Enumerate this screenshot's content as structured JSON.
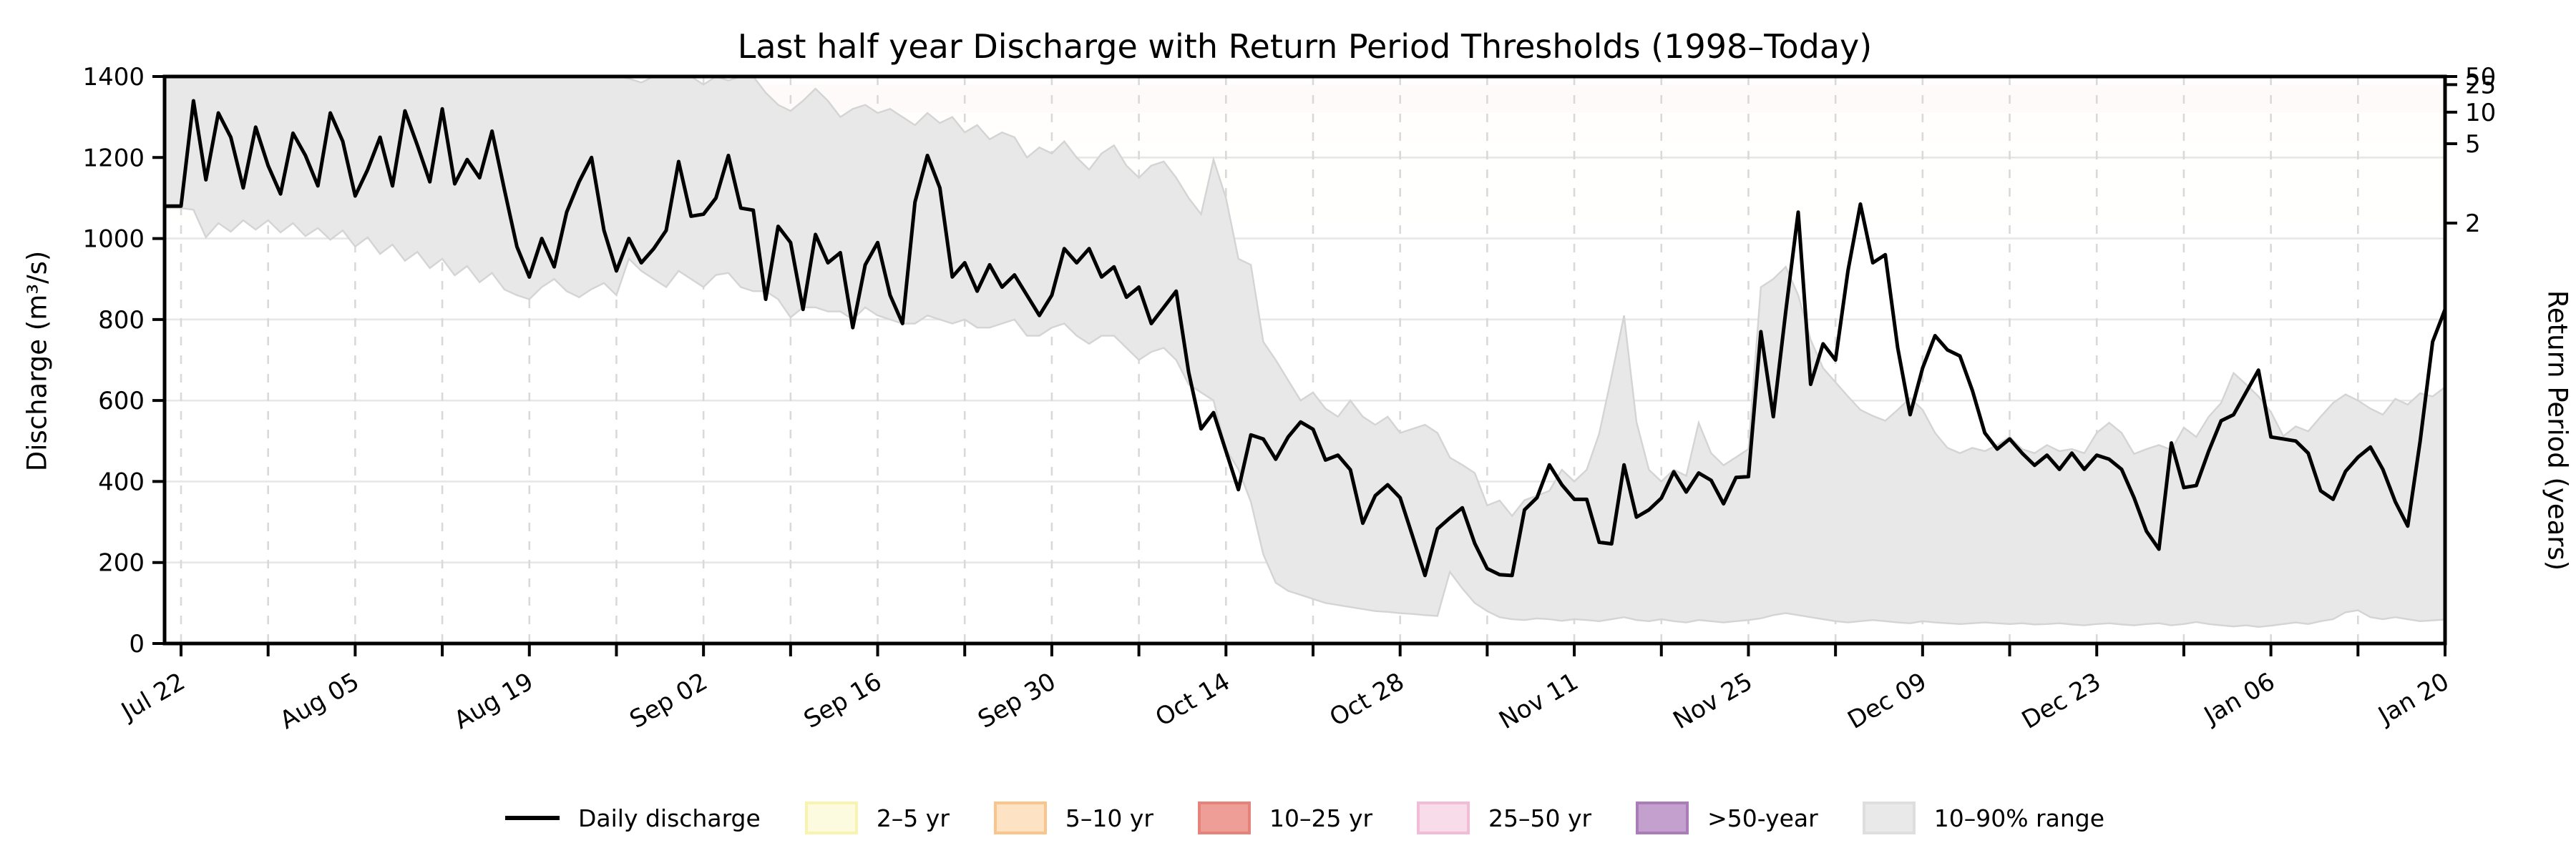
{
  "title": "Last half year Discharge with Return Period Thresholds (1998–Today)",
  "axes": {
    "y_left": {
      "label": "Discharge (m³/s)",
      "ticks": [
        0,
        200,
        400,
        600,
        800,
        1000,
        1200,
        1400
      ],
      "lim": [
        0,
        1400
      ]
    },
    "y_right": {
      "label": "Return Period (years)",
      "ticks": [
        {
          "label": "2",
          "discharge": 1038
        },
        {
          "label": "5",
          "discharge": 1234
        },
        {
          "label": "10",
          "discharge": 1312
        },
        {
          "label": "25",
          "discharge": 1380
        },
        {
          "label": "50",
          "discharge": 1402
        }
      ]
    },
    "x": {
      "tick_labels": [
        "Jul 22",
        "Aug 05",
        "Aug 19",
        "Sep 02",
        "Sep 16",
        "Sep 30",
        "Oct 14",
        "Oct 28",
        "Nov 11",
        "Nov 25",
        "Dec 09",
        "Dec 23",
        "Jan 06",
        "Jan 20"
      ],
      "minor_tick_interval_days": 7,
      "labeled_tick_interval_days": 14
    }
  },
  "legend": {
    "items": [
      {
        "label": "Daily discharge",
        "type": "line",
        "fill": "#000000",
        "border": "#000000"
      },
      {
        "label": "2–5 yr",
        "type": "patch",
        "fill": "#fdfbdf",
        "border": "#f9f3b0"
      },
      {
        "label": "5–10 yr",
        "type": "patch",
        "fill": "#fde3c4",
        "border": "#fac48d"
      },
      {
        "label": "10–25 yr",
        "type": "patch",
        "fill": "#ee9e96",
        "border": "#e5837b"
      },
      {
        "label": "25–50 yr",
        "type": "patch",
        "fill": "#f8dcea",
        "border": "#f2bcd7"
      },
      {
        "label": ">50-year",
        "type": "patch",
        "fill": "#c3a0ce",
        "border": "#aa7cb8"
      },
      {
        "label": "10–90% range",
        "type": "patch",
        "fill": "#e9e9e9",
        "border": "#dedede"
      }
    ]
  },
  "colors": {
    "line": "#000000",
    "band_fill": "#e8e8e8",
    "band_edge": "#d4d4d4",
    "grid_h": "#e7e7e7",
    "grid_v": "#d9d9d9",
    "spine": "#000000"
  },
  "chart_data": {
    "type": "line",
    "title": "Last half year Discharge with Return Period Thresholds (1998–Today)",
    "xlabel": "",
    "ylabel": "Discharge (m³/s)",
    "ylabel_right": "Return Period (years)",
    "ylim": [
      0,
      1400
    ],
    "grid": "horizontal solid, vertical dashed weekly",
    "legend_position": "below plot, centered, single row",
    "x_start": "Jul 22",
    "x_end": "Jan 20",
    "x_sampling": "daily",
    "x_tick_labels": [
      "Jul 22",
      "Aug 05",
      "Aug 19",
      "Sep 02",
      "Sep 16",
      "Sep 30",
      "Oct 14",
      "Oct 28",
      "Nov 11",
      "Nov 25",
      "Dec 09",
      "Dec 23",
      "Jan 06",
      "Jan 20"
    ],
    "threshold_bands": [
      {
        "label": "2–5 yr",
        "from": 1038,
        "to": 1234
      },
      {
        "label": "5–10 yr",
        "from": 1234,
        "to": 1312
      },
      {
        "label": "10–25 yr",
        "from": 1312,
        "to": 1380
      },
      {
        "label": "25–50 yr",
        "from": 1380,
        "to": 1402
      },
      {
        "label": ">50-year",
        "from": 1402,
        "to": 1430
      }
    ],
    "series": [
      {
        "name": "Daily discharge",
        "values": [
          1080,
          1340,
          1145,
          1310,
          1250,
          1125,
          1275,
          1180,
          1110,
          1260,
          1205,
          1130,
          1310,
          1240,
          1105,
          1170,
          1250,
          1130,
          1315,
          1230,
          1140,
          1320,
          1135,
          1195,
          1150,
          1265,
          1120,
          980,
          905,
          1000,
          930,
          1065,
          1140,
          1200,
          1020,
          920,
          1000,
          940,
          975,
          1020,
          1190,
          1055,
          1060,
          1100,
          1205,
          1075,
          1070,
          850,
          1030,
          990,
          825,
          1010,
          940,
          965,
          780,
          935,
          990,
          860,
          790,
          1090,
          1205,
          1125,
          905,
          940,
          870,
          935,
          880,
          910,
          860,
          810,
          860,
          975,
          940,
          975,
          905,
          930,
          855,
          880,
          790,
          830,
          870,
          670,
          530,
          570,
          475,
          380,
          515,
          505,
          455,
          510,
          547,
          529,
          453,
          465,
          429,
          297,
          365,
          392,
          360,
          265,
          168,
          283,
          310,
          335,
          247,
          185,
          170,
          168,
          330,
          360,
          441,
          392,
          356,
          356,
          250,
          246,
          441,
          312,
          330,
          359,
          424,
          374,
          421,
          403,
          345,
          410,
          412,
          770,
          560,
          820,
          1065,
          640,
          740,
          700,
          920,
          1085,
          940,
          960,
          730,
          565,
          680,
          760,
          725,
          710,
          625,
          520,
          480,
          505,
          470,
          440,
          465,
          430,
          470,
          430,
          465,
          455,
          430,
          360,
          277,
          233,
          495,
          385,
          390,
          475,
          550,
          565,
          620,
          675,
          510,
          505,
          500,
          470,
          377,
          356,
          425,
          460,
          485,
          430,
          350,
          290,
          500,
          745,
          825
        ]
      },
      {
        "name": "10–90% range upper",
        "values": [
          1430,
          1430,
          1430,
          1430,
          1430,
          1430,
          1430,
          1430,
          1430,
          1430,
          1430,
          1430,
          1430,
          1430,
          1430,
          1430,
          1430,
          1430,
          1430,
          1430,
          1430,
          1430,
          1430,
          1430,
          1430,
          1430,
          1430,
          1430,
          1430,
          1430,
          1430,
          1430,
          1430,
          1430,
          1430,
          1430,
          1395,
          1385,
          1400,
          1420,
          1430,
          1410,
          1380,
          1400,
          1390,
          1410,
          1400,
          1360,
          1330,
          1315,
          1340,
          1370,
          1340,
          1300,
          1320,
          1330,
          1310,
          1320,
          1300,
          1280,
          1310,
          1285,
          1300,
          1262,
          1280,
          1245,
          1262,
          1250,
          1200,
          1225,
          1210,
          1240,
          1200,
          1170,
          1210,
          1230,
          1180,
          1150,
          1180,
          1190,
          1150,
          1100,
          1060,
          1195,
          1100,
          950,
          935,
          745,
          700,
          650,
          600,
          620,
          580,
          560,
          600,
          560,
          540,
          560,
          520,
          530,
          540,
          520,
          459,
          441,
          421,
          341,
          353,
          315,
          354,
          365,
          377,
          429,
          400,
          429,
          518,
          660,
          810,
          547,
          429,
          400,
          429,
          414,
          545,
          470,
          440,
          460,
          480,
          880,
          900,
          930,
          860,
          750,
          680,
          645,
          610,
          577,
          562,
          550,
          577,
          606,
          577,
          520,
          483,
          470,
          483,
          475,
          490,
          510,
          480,
          470,
          490,
          475,
          480,
          470,
          520,
          545,
          520,
          468,
          480,
          490,
          478,
          533,
          510,
          560,
          594,
          668,
          640,
          610,
          572,
          512,
          536,
          524,
          560,
          594,
          615,
          600,
          580,
          565,
          604,
          590,
          618,
          610,
          633
        ]
      },
      {
        "name": "10–90% range lower",
        "values": [
          1075,
          1071,
          1003,
          1038,
          1017,
          1045,
          1022,
          1045,
          1015,
          1038,
          1006,
          1026,
          997,
          1020,
          980,
          1003,
          962,
          985,
          945,
          967,
          927,
          950,
          909,
          932,
          892,
          915,
          874,
          860,
          850,
          880,
          900,
          870,
          855,
          875,
          890,
          860,
          950,
          920,
          900,
          880,
          920,
          900,
          880,
          910,
          915,
          880,
          870,
          870,
          850,
          805,
          830,
          830,
          820,
          820,
          800,
          830,
          810,
          800,
          790,
          790,
          810,
          800,
          790,
          800,
          780,
          780,
          790,
          800,
          760,
          760,
          780,
          790,
          760,
          740,
          760,
          760,
          730,
          700,
          720,
          730,
          700,
          640,
          620,
          600,
          480,
          430,
          350,
          220,
          150,
          130,
          120,
          110,
          100,
          95,
          90,
          85,
          80,
          78,
          75,
          73,
          70,
          68,
          177,
          136,
          100,
          80,
          65,
          60,
          58,
          62,
          60,
          56,
          60,
          58,
          55,
          60,
          65,
          58,
          55,
          60,
          55,
          52,
          58,
          55,
          52,
          55,
          58,
          62,
          70,
          75,
          70,
          65,
          60,
          55,
          52,
          55,
          58,
          55,
          52,
          50,
          55,
          52,
          50,
          48,
          50,
          52,
          50,
          48,
          50,
          47,
          48,
          50,
          47,
          45,
          48,
          50,
          47,
          45,
          48,
          50,
          45,
          48,
          53,
          48,
          45,
          42,
          45,
          41,
          44,
          48,
          52,
          48,
          55,
          60,
          77,
          82,
          65,
          60,
          65,
          60,
          55,
          57,
          59
        ]
      }
    ]
  }
}
